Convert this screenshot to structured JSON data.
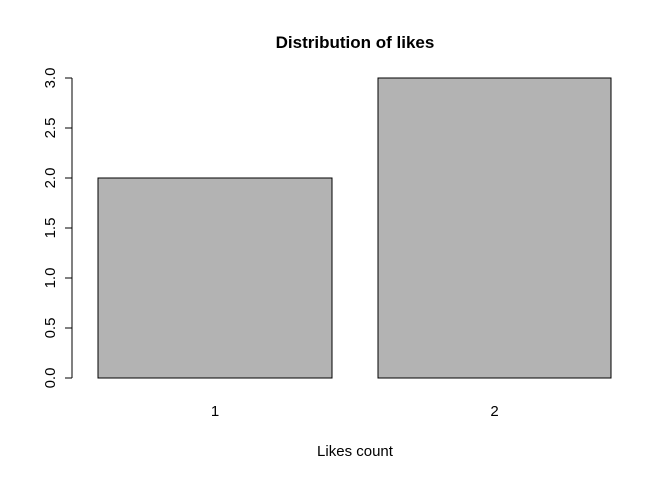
{
  "chart_data": {
    "type": "bar",
    "title": "Distribution of likes",
    "xlabel": "Likes count",
    "ylabel": "",
    "categories": [
      "1",
      "2"
    ],
    "values": [
      2,
      3
    ],
    "ylim": [
      0,
      3
    ],
    "y_ticks": [
      0,
      0.5,
      1,
      1.5,
      2,
      2.5,
      3
    ],
    "y_tick_labels": [
      "0.0",
      "0.5",
      "1.0",
      "1.5",
      "2.0",
      "2.5",
      "3.0"
    ],
    "grid": false,
    "legend": "none",
    "colors": {
      "bar_fill": "#b3b3b3",
      "bar_stroke": "#000000",
      "axis": "#000000",
      "text": "#000000",
      "background": "#ffffff"
    }
  }
}
